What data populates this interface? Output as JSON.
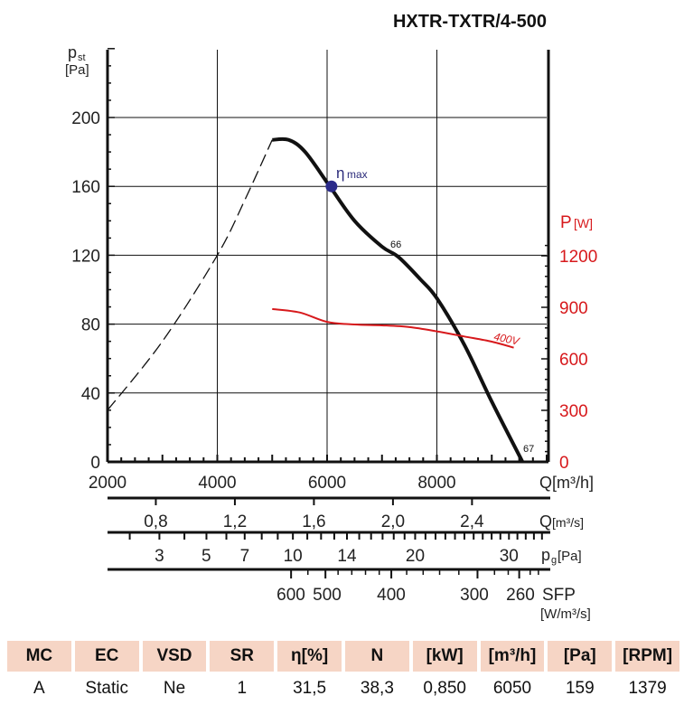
{
  "chart_data": {
    "type": "line",
    "title": "HXTR-TXTR/4-500",
    "xlabel": "Q[m³/h]",
    "ylabel_left": {
      "main": "p",
      "sub": "st",
      "unit": "[Pa]"
    },
    "ylabel_right": {
      "main": "P",
      "unit": "[W]"
    },
    "xlim": [
      2000,
      10000
    ],
    "ylim_left": [
      0,
      240
    ],
    "ylim_right": [
      0,
      1260
    ],
    "x_ticks": [
      "2000",
      "4000",
      "6000",
      "8000"
    ],
    "x_tick_values": [
      2000,
      4000,
      6000,
      8000
    ],
    "y_ticks_left": [
      "0",
      "40",
      "80",
      "120",
      "160",
      "200"
    ],
    "y_ticks_right": [
      "0",
      "300",
      "600",
      "900",
      "1200"
    ],
    "grid": true,
    "series": [
      {
        "name": "fan-curve",
        "color": "#111111",
        "style": "solid",
        "x": [
          5000,
          5300,
          5600,
          6050,
          6500,
          7000,
          7300,
          7700,
          8000,
          8500,
          9000,
          9560
        ],
        "y": [
          187,
          187,
          180,
          160,
          140,
          125,
          119,
          106,
          95,
          68,
          35,
          0
        ]
      },
      {
        "name": "unstable-region",
        "color": "#111111",
        "style": "dashed",
        "x": [
          2000,
          3000,
          4000,
          4500,
          5000
        ],
        "y": [
          30,
          70,
          120,
          152,
          187
        ]
      },
      {
        "name": "400V",
        "label": "400V",
        "color": "#d7191c",
        "axis": "right",
        "x": [
          5000,
          5500,
          6000,
          6500,
          7000,
          7500,
          8000,
          8500,
          9000,
          9400
        ],
        "y": [
          890,
          870,
          815,
          800,
          795,
          785,
          760,
          730,
          700,
          665
        ]
      }
    ],
    "annotations": [
      {
        "text": "η",
        "sub": "max",
        "x": 6080,
        "y": 160,
        "color": "#2b2b7a"
      },
      {
        "text": "66",
        "x": 7200,
        "y": 127
      },
      {
        "text": "67",
        "x": 9600,
        "y": 8
      }
    ],
    "secondary_axes": [
      {
        "label": "Q",
        "unit": "[m³/s]",
        "ticks": [
          "0,8",
          "1,2",
          "1,6",
          "2,0",
          "2,4"
        ],
        "tick_q": [
          2880,
          4320,
          5760,
          7200,
          8640
        ]
      },
      {
        "label": "p",
        "sub": "g",
        "unit": "[Pa]",
        "ticks": [
          "3",
          "5",
          "7",
          "10",
          "14",
          "20",
          "30"
        ],
        "tick_q": [
          2945,
          3800,
          4500,
          5377,
          6362,
          7605,
          9313
        ]
      },
      {
        "label": "SFP",
        "unit": "[W/m³/s]",
        "ticks": [
          "600",
          "500",
          "400",
          "300",
          "260"
        ],
        "tick_q": [
          5344,
          5970,
          7170,
          8740,
          9500
        ]
      }
    ]
  },
  "table": {
    "headers": [
      "MC",
      "EC",
      "VSD",
      "SR",
      "η[%]",
      "N",
      "[kW]",
      "[m³/h]",
      "[Pa]",
      "[RPM]"
    ],
    "values": [
      "A",
      "Static",
      "Ne",
      "1",
      "31,5",
      "38,3",
      "0,850",
      "6050",
      "159",
      "1379"
    ]
  }
}
